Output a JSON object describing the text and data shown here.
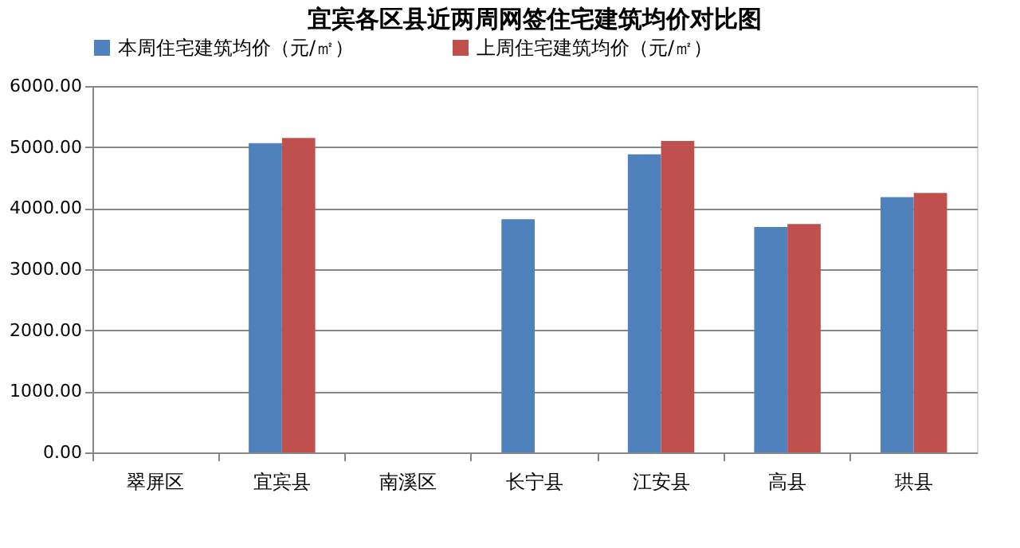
{
  "chart_data": {
    "type": "bar",
    "title": "宜宾各区县近两周网签住宅建筑均价对比图",
    "categories": [
      "翠屏区",
      "宜宾县",
      "南溪区",
      "长宁县",
      "江安县",
      "高县",
      "珙县"
    ],
    "series": [
      {
        "name": "本周住宅建筑均价（元/㎡）",
        "color": "#4f81bd",
        "values": [
          null,
          5065,
          null,
          3820,
          4880,
          3690,
          4180
        ]
      },
      {
        "name": "上周住宅建筑均价（元/㎡）",
        "color": "#c0504d",
        "values": [
          null,
          5150,
          null,
          null,
          5100,
          3740,
          4250
        ]
      }
    ],
    "ylim": [
      0,
      6000
    ],
    "yticks": [
      {
        "value": 0,
        "label": "0.00"
      },
      {
        "value": 1000,
        "label": "1000.00"
      },
      {
        "value": 2000,
        "label": "2000.00"
      },
      {
        "value": 3000,
        "label": "3000.00"
      },
      {
        "value": 4000,
        "label": "4000.00"
      },
      {
        "value": 5000,
        "label": "5000.00"
      },
      {
        "value": 6000,
        "label": "6000.00"
      }
    ],
    "grid": "y",
    "legend": "top"
  }
}
